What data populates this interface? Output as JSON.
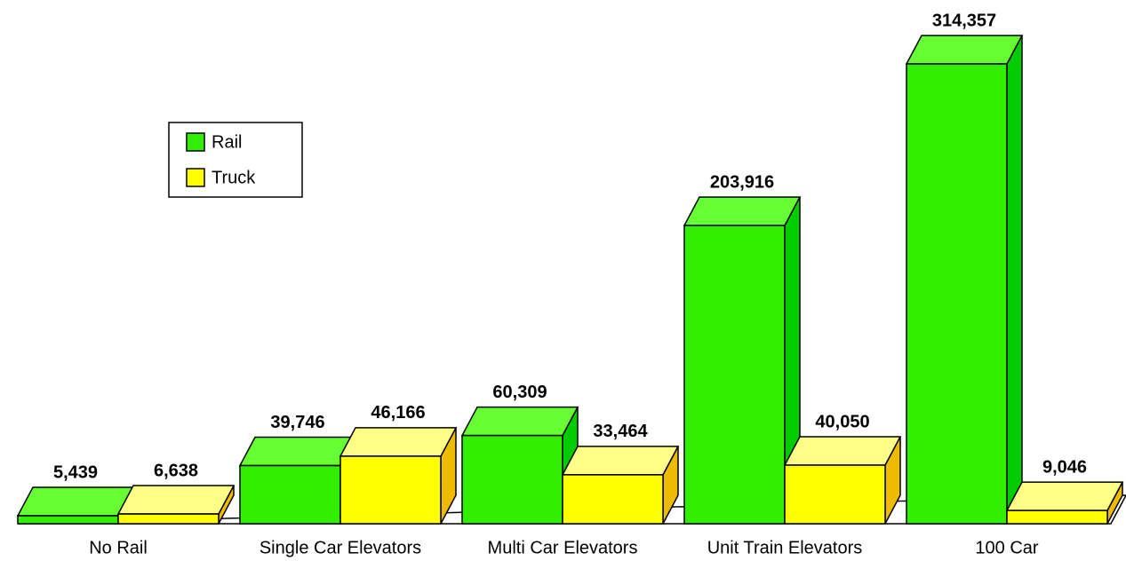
{
  "chart_data": {
    "type": "bar3d",
    "categories": [
      "No Rail",
      "Single Car Elevators",
      "Multi Car Elevators",
      "Unit Train Elevators",
      "100 Car"
    ],
    "series": [
      {
        "name": "Rail",
        "color": "#33ee00",
        "values": [
          5439,
          39746,
          60309,
          203916,
          314357
        ],
        "value_labels": [
          "5,439",
          "39,746",
          "60,309",
          "203,916",
          "314,357"
        ]
      },
      {
        "name": "Truck",
        "color": "#ffff00",
        "values": [
          6638,
          46166,
          33464,
          40050,
          9046
        ],
        "value_labels": [
          "6,638",
          "46,166",
          "33,464",
          "40,050",
          "9,046"
        ]
      }
    ],
    "legend": "upper left"
  }
}
